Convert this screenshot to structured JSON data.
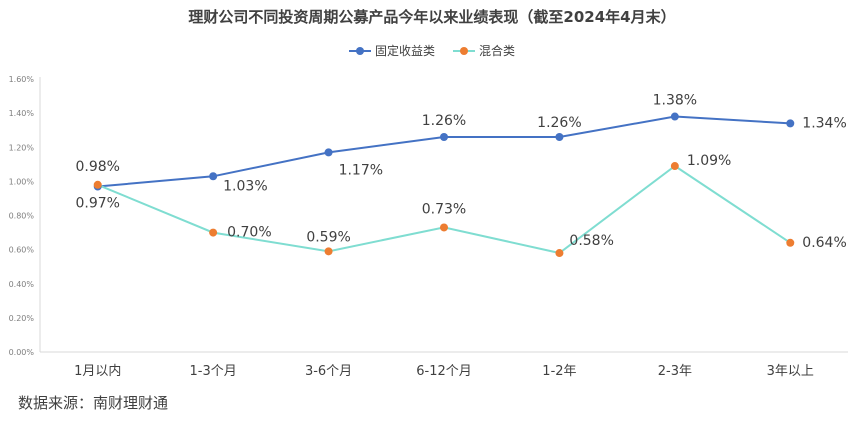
{
  "title": "理财公司不同投资周期公募产品今年以来业绩表现（截至2024年4月末）",
  "source": "数据来源：南财理财通",
  "chart_data": {
    "type": "line",
    "title": "理财公司不同投资周期公募产品今年以来业绩表现（截至2024年4月末）",
    "categories": [
      "1月以内",
      "1-3个月",
      "3-6个月",
      "6-12个月",
      "1-2年",
      "2-3年",
      "3年以上"
    ],
    "y_ticks": [
      "0.00%",
      "0.20%",
      "0.40%",
      "0.60%",
      "0.80%",
      "1.00%",
      "1.20%",
      "1.40%",
      "1.60%"
    ],
    "ylim": [
      0,
      1.6
    ],
    "unit": "%",
    "grid": false,
    "legend_position": "top",
    "series": [
      {
        "name": "固定收益类",
        "color": "#4472C4",
        "values": [
          0.97,
          1.03,
          1.17,
          1.26,
          1.26,
          1.38,
          1.34
        ],
        "labels": [
          "0.97%",
          "1.03%",
          "1.17%",
          "1.26%",
          "1.26%",
          "1.38%",
          "1.34%"
        ]
      },
      {
        "name": "混合类",
        "color": "#7FDDD1",
        "marker_color": "#ED7D31",
        "values": [
          0.98,
          0.7,
          0.59,
          0.73,
          0.58,
          1.09,
          0.64
        ],
        "labels": [
          "0.98%",
          "0.70%",
          "0.59%",
          "0.73%",
          "0.58%",
          "1.09%",
          "0.64%"
        ]
      }
    ]
  }
}
